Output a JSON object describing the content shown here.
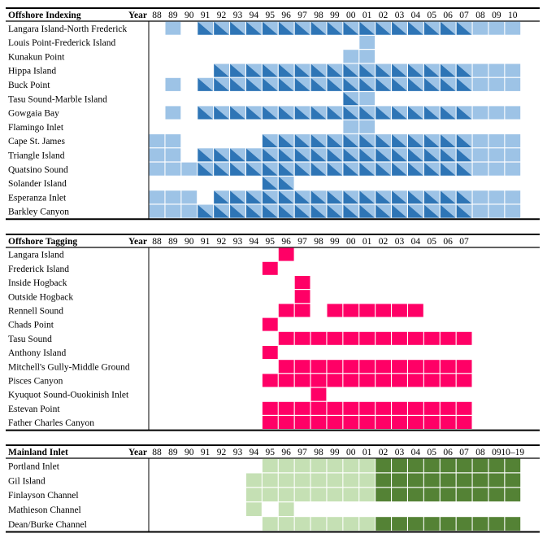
{
  "chart_data": [
    {
      "type": "heatmap",
      "title": "Offshore Indexing",
      "x_header": "Year",
      "x_labels": [
        "88",
        "89",
        "90",
        "91",
        "92",
        "93",
        "94",
        "95",
        "96",
        "97",
        "98",
        "99",
        "00",
        "01",
        "02",
        "03",
        "04",
        "05",
        "06",
        "07",
        "08",
        "09",
        "10"
      ],
      "legend": {
        "none": "no survey",
        "light": "light blue cell",
        "split": "light/dark blue diagonal cell"
      },
      "colors": {
        "light": "#9dc3e6",
        "dark": "#2e75b6",
        "line": "#ffffff"
      },
      "rows": [
        {
          "label": "Langara Island-North Frederick",
          "cells": "_L_SSSSSSSSSSSSSSSSSLLL"
        },
        {
          "label": "Louis Point-Frederick Island",
          "cells": "_____________L_________"
        },
        {
          "label": "Kunakun Point",
          "cells": "____________LL_________"
        },
        {
          "label": "Hippa Island",
          "cells": "____SSSSSSSSSSSSSSSSLLL"
        },
        {
          "label": "Buck Point",
          "cells": "_L_SSSSSSSSSSSSSSSSSLLL"
        },
        {
          "label": "Tasu Sound-Marble Island",
          "cells": "____________SL_________"
        },
        {
          "label": "Gowgaia Bay",
          "cells": "_L_SSSSSSSSSSSSSSSSSLLL"
        },
        {
          "label": "Flamingo Inlet",
          "cells": "____________LL_________"
        },
        {
          "label": "Cape St. James",
          "cells": "LL_____SSSSSSSSSSSSSLLL"
        },
        {
          "label": "Triangle Island",
          "cells": "LL_SSSSSSSSSSSSSSSSSLLL"
        },
        {
          "label": "Quatsino Sound",
          "cells": "LLLSSSSSSSSSSSSSSSSSLLL"
        },
        {
          "label": "Solander Island",
          "cells": "_______SS______________"
        },
        {
          "label": "Esperanza Inlet",
          "cells": "LLL_SSSSSSSSSSSSSSSSLLL"
        },
        {
          "label": "Barkley Canyon",
          "cells": "LLLSSSSSSSSSSSSSSSSSLLL"
        }
      ]
    },
    {
      "type": "heatmap",
      "title": "Offshore Tagging",
      "x_header": "Year",
      "x_labels": [
        "88",
        "89",
        "90",
        "91",
        "92",
        "93",
        "94",
        "95",
        "96",
        "97",
        "98",
        "99",
        "00",
        "01",
        "02",
        "03",
        "04",
        "05",
        "06",
        "07"
      ],
      "legend": {
        "none": "no tagging",
        "filled": "pink cell"
      },
      "colors": {
        "fill": "#ff0066",
        "line": "#ffffff"
      },
      "rows": [
        {
          "label": "Langara Island",
          "years": [
            "96"
          ]
        },
        {
          "label": "Frederick Island",
          "years": [
            "95"
          ]
        },
        {
          "label": "Inside Hogback",
          "years": [
            "97"
          ]
        },
        {
          "label": "Outside Hogback",
          "years": [
            "97"
          ]
        },
        {
          "label": "Rennell Sound",
          "years": [
            "96",
            "97",
            "99",
            "00",
            "01",
            "02",
            "03",
            "04"
          ]
        },
        {
          "label": "Chads Point",
          "years": [
            "95"
          ]
        },
        {
          "label": "Tasu Sound",
          "years": [
            "96",
            "97",
            "98",
            "99",
            "00",
            "01",
            "02",
            "03",
            "04",
            "05",
            "06",
            "07"
          ]
        },
        {
          "label": "Anthony Island",
          "years": [
            "95"
          ]
        },
        {
          "label": "Mitchell's Gully-Middle Ground",
          "years": [
            "96",
            "97",
            "98",
            "99",
            "00",
            "01",
            "02",
            "03",
            "04",
            "05",
            "06",
            "07"
          ]
        },
        {
          "label": "Pisces Canyon",
          "years": [
            "95",
            "96",
            "97",
            "98",
            "99",
            "00",
            "01",
            "02",
            "03",
            "04",
            "05",
            "06",
            "07"
          ]
        },
        {
          "label": "Kyuquot Sound-Ouokinish Inlet",
          "years": [
            "98"
          ]
        },
        {
          "label": "Estevan Point",
          "years": [
            "95",
            "96",
            "97",
            "98",
            "99",
            "00",
            "01",
            "02",
            "03",
            "04",
            "05",
            "06",
            "07"
          ]
        },
        {
          "label": "Father Charles Canyon",
          "years": [
            "95",
            "96",
            "97",
            "98",
            "99",
            "00",
            "01",
            "02",
            "03",
            "04",
            "05",
            "06",
            "07"
          ]
        }
      ]
    },
    {
      "type": "heatmap",
      "title": "Mainland Inlet",
      "x_header": "Year",
      "x_labels": [
        "88",
        "89",
        "90",
        "91",
        "92",
        "93",
        "94",
        "95",
        "96",
        "97",
        "98",
        "99",
        "00",
        "01",
        "02",
        "03",
        "04",
        "05",
        "06",
        "07",
        "08",
        "09",
        "10–19"
      ],
      "legend": {
        "none": "no survey",
        "light": "light green cell",
        "dark": "dark green cell"
      },
      "colors": {
        "light": "#c5e0b4",
        "dark": "#548235",
        "line": "#ffffff"
      },
      "rows": [
        {
          "label": "Portland Inlet",
          "cells": "_______LLLLLLLDDDDDDDDD"
        },
        {
          "label": "Gil Island",
          "cells": "______LLLLLLLLDDDDDDDDD"
        },
        {
          "label": "Finlayson Channel",
          "cells": "______LLLLLLLLDDDDDDDDD"
        },
        {
          "label": "Mathieson Channel",
          "cells": "______L_L______________"
        },
        {
          "label": "Dean/Burke Channel",
          "cells": "_______LLLLLLLDDDDDDDDD"
        }
      ]
    }
  ]
}
